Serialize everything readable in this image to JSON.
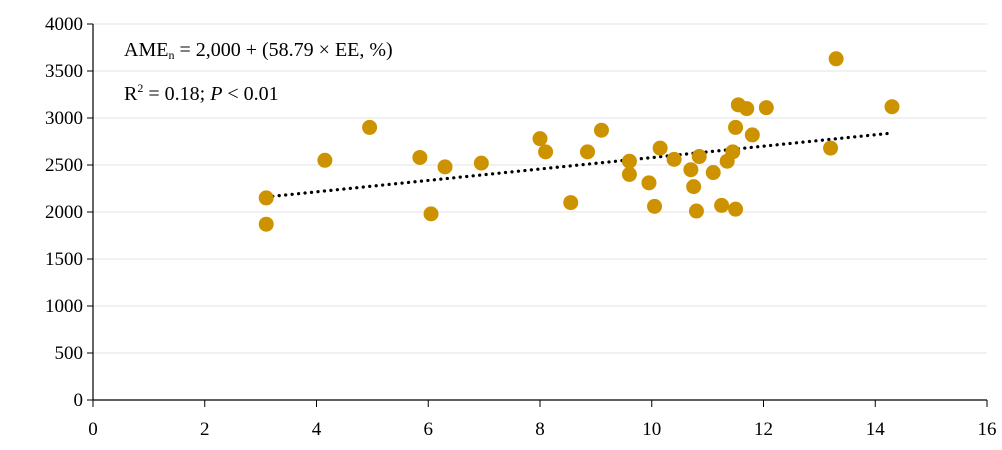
{
  "chart_data": {
    "type": "scatter",
    "title": "",
    "xlabel": "",
    "ylabel": "",
    "xlim": [
      0,
      16
    ],
    "ylim": [
      0,
      4000
    ],
    "x_ticks": [
      "0",
      "2",
      "4",
      "6",
      "8",
      "10",
      "12",
      "14",
      "16"
    ],
    "y_ticks": [
      "0",
      "500",
      "1000",
      "1500",
      "2000",
      "2500",
      "3000",
      "3500",
      "4000"
    ],
    "grid": {
      "horizontal": true,
      "vertical": false
    },
    "legend": "none",
    "point_color": "#CC9200",
    "trendline": {
      "style": "dotted",
      "color": "#000000",
      "equation_prefix": "AME",
      "equation_subscript": "n",
      "equation_rest": " = 2,000 + (58.79 × EE, %)",
      "r2_prefix": "R",
      "r2_superscript": "2",
      "r2_rest": " = 0.18; ",
      "p_symbol": "P",
      "p_rest": " < 0.01",
      "x_start": 3.1,
      "x_end": 14.3,
      "y_start": 2160,
      "y_end": 2840
    },
    "series": [
      {
        "points": [
          [
            3.1,
            2150
          ],
          [
            3.1,
            1870
          ],
          [
            4.15,
            2550
          ],
          [
            4.95,
            2900
          ],
          [
            5.85,
            2580
          ],
          [
            6.05,
            1980
          ],
          [
            6.3,
            2480
          ],
          [
            6.95,
            2520
          ],
          [
            8.0,
            2780
          ],
          [
            8.1,
            2640
          ],
          [
            8.55,
            2100
          ],
          [
            8.85,
            2640
          ],
          [
            9.1,
            2870
          ],
          [
            9.6,
            2540
          ],
          [
            9.6,
            2400
          ],
          [
            9.95,
            2310
          ],
          [
            10.05,
            2060
          ],
          [
            10.15,
            2680
          ],
          [
            10.4,
            2560
          ],
          [
            10.7,
            2450
          ],
          [
            10.75,
            2270
          ],
          [
            10.8,
            2010
          ],
          [
            10.85,
            2590
          ],
          [
            11.1,
            2420
          ],
          [
            11.25,
            2070
          ],
          [
            11.35,
            2540
          ],
          [
            11.45,
            2640
          ],
          [
            11.5,
            2900
          ],
          [
            11.5,
            2030
          ],
          [
            11.55,
            3140
          ],
          [
            11.7,
            3100
          ],
          [
            11.8,
            2820
          ],
          [
            12.05,
            3110
          ],
          [
            13.2,
            2680
          ],
          [
            13.3,
            3630
          ],
          [
            14.3,
            3120
          ]
        ]
      }
    ]
  }
}
